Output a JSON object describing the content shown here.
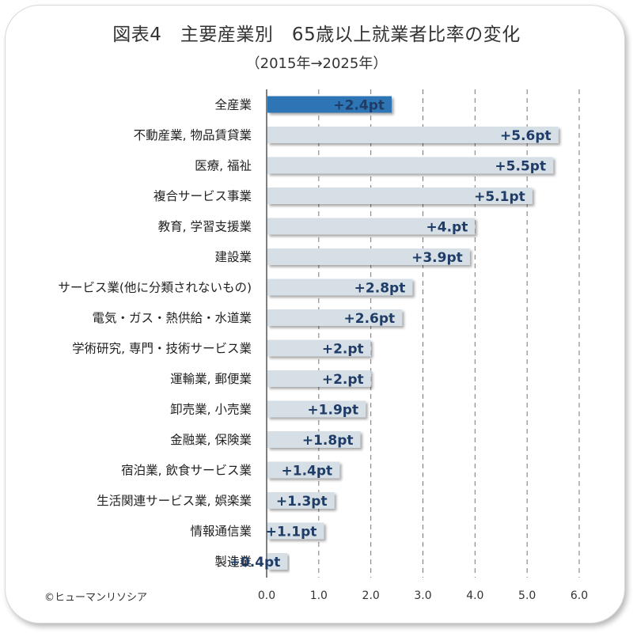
{
  "title": "図表4　主要産業別　65歳以上就業者比率の変化",
  "subtitle": "（2015年→2025年）",
  "copyright": "©ヒューマンリソシア",
  "colors": {
    "highlight_bar": "#2e75b6",
    "bar": "#d6dee6",
    "value_text": "#1f3d66",
    "highlight_value_text": "#ffffff",
    "grid": "#777777",
    "axis": "#555555"
  },
  "chart_data": {
    "type": "bar",
    "orientation": "horizontal",
    "categories": [
      "全産業",
      "不動産業, 物品賃貸業",
      "医療, 福祉",
      "複合サービス事業",
      "教育, 学習支援業",
      "建設業",
      "サービス業(他に分類されないもの)",
      "電気・ガス・熱供給・水道業",
      "学術研究, 専門・技術サービス業",
      "運輸業, 郵便業",
      "卸売業, 小売業",
      "金融業, 保険業",
      "宿泊業, 飲食サービス業",
      "生活関連サービス業, 娯楽業",
      "情報通信業",
      "製造業"
    ],
    "values": [
      2.4,
      5.6,
      5.5,
      5.1,
      4.0,
      3.9,
      2.8,
      2.6,
      2.0,
      2.0,
      1.9,
      1.8,
      1.4,
      1.3,
      1.1,
      0.4
    ],
    "value_labels": [
      "+2.4pt",
      "+5.6pt",
      "+5.5pt",
      "+5.1pt",
      "+4.pt",
      "+3.9pt",
      "+2.8pt",
      "+2.6pt",
      "+2.pt",
      "+2.pt",
      "+1.9pt",
      "+1.8pt",
      "+1.4pt",
      "+1.3pt",
      "+1.1pt",
      "+0.4pt"
    ],
    "highlight_index": 0,
    "xlim": [
      0,
      6
    ],
    "x_ticks": [
      "0.0",
      "1.0",
      "2.0",
      "3.0",
      "4.0",
      "5.0",
      "6.0"
    ],
    "grid": true,
    "grid_style": "dashed vertical",
    "legend": "none"
  }
}
